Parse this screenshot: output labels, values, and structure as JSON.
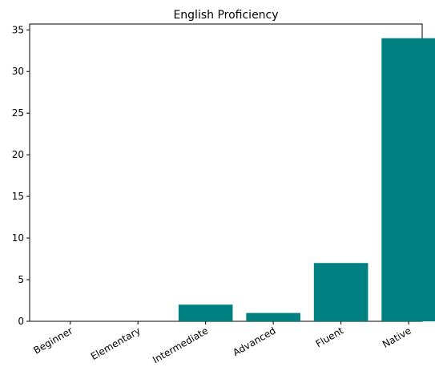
{
  "chart_data": {
    "type": "bar",
    "title": "English Proficiency",
    "categories": [
      "Beginner",
      "Elementary",
      "Intermediate",
      "Advanced",
      "Fluent",
      "Native"
    ],
    "values": [
      0,
      0,
      2,
      1,
      7,
      34
    ],
    "color": "#008080",
    "ylim": [
      0,
      35.7
    ],
    "yticks": [
      0,
      5,
      10,
      15,
      20,
      25,
      30,
      35
    ],
    "grid": false
  }
}
